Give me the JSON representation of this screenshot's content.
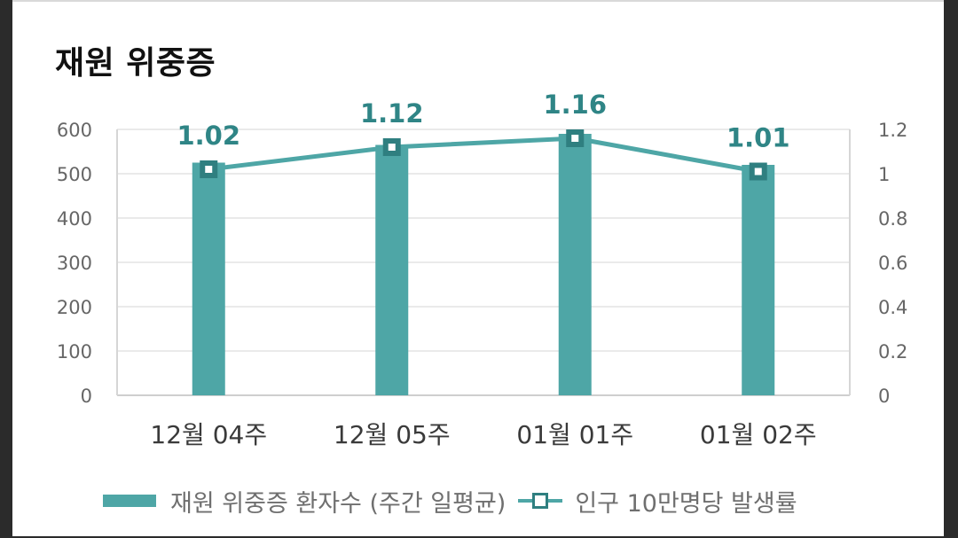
{
  "chart_data": {
    "type": "bar",
    "title": "재원 위중증",
    "categories": [
      "12월 04주",
      "12월 05주",
      "01월 01주",
      "01월 02주"
    ],
    "series": [
      {
        "name": "재원 위중증 환자수 (주간 일평균)",
        "kind": "bar",
        "axis": "left",
        "values": [
          525,
          565,
          590,
          520
        ],
        "color": "#4ea6a6"
      },
      {
        "name": "인구 10만명당 발생률",
        "kind": "line",
        "axis": "right",
        "values": [
          1.02,
          1.12,
          1.16,
          1.01
        ],
        "labels": [
          "1.02",
          "1.12",
          "1.16",
          "1.01"
        ],
        "color": "#4ea6a6",
        "marker_color": "#2f7f80",
        "label_color": "#2f8586"
      }
    ],
    "y_left": {
      "ylim": [
        0,
        600
      ],
      "ticks": [
        0,
        100,
        200,
        300,
        400,
        500,
        600
      ],
      "tick_labels": [
        "0",
        "100",
        "200",
        "300",
        "400",
        "500",
        "600"
      ]
    },
    "y_right": {
      "ylim": [
        0,
        1.2
      ],
      "ticks": [
        0,
        0.2,
        0.4,
        0.6,
        0.8,
        1,
        1.2
      ],
      "tick_labels": [
        "0",
        "0.2",
        "0.4",
        "0.6",
        "0.8",
        "1",
        "1.2"
      ]
    },
    "grid": true,
    "legend_position": "bottom"
  }
}
